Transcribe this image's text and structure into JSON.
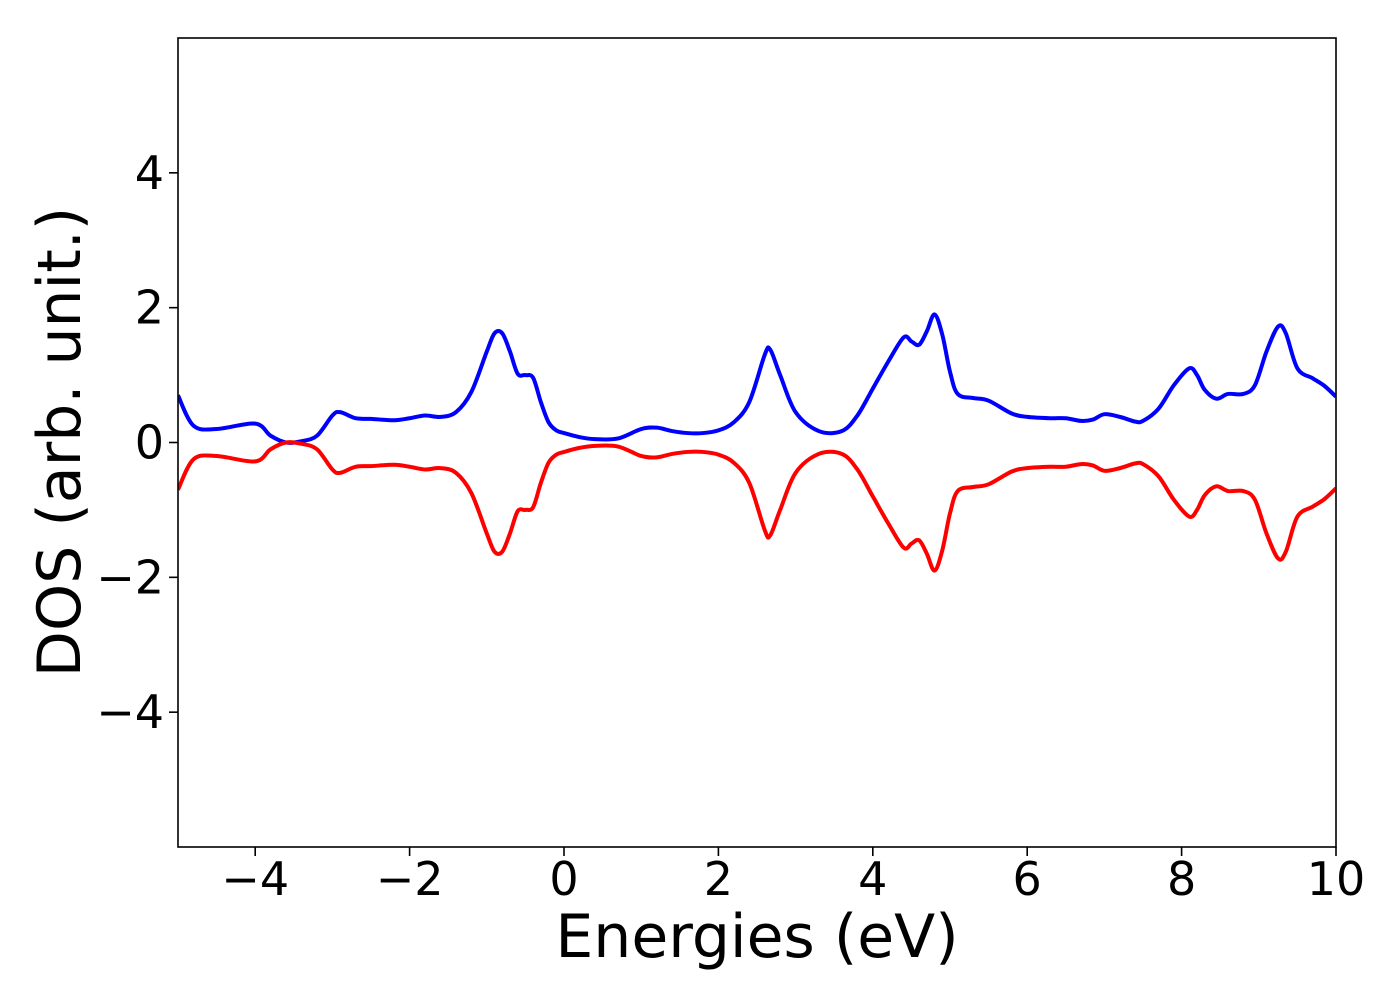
{
  "chart_data": {
    "type": "line",
    "title": "",
    "xlabel": "Energies (eV)",
    "ylabel": "DOS (arb. unit.)",
    "xlim": [
      -5,
      10
    ],
    "ylim": [
      -6,
      6
    ],
    "x_ticks": [
      -4,
      -2,
      0,
      2,
      4,
      6,
      8,
      10
    ],
    "x_tick_labels": [
      "−4",
      "−2",
      "0",
      "2",
      "4",
      "6",
      "8",
      "10"
    ],
    "y_ticks": [
      -4,
      -2,
      0,
      2,
      4
    ],
    "y_tick_labels": [
      "−4",
      "−2",
      "0",
      "2",
      "4"
    ],
    "grid": false,
    "legend": "none",
    "series": [
      {
        "color": "#0000ff",
        "x": [
          -5.0,
          -4.8,
          -4.5,
          -4.0,
          -3.8,
          -3.6,
          -3.4,
          -3.2,
          -3.0,
          -2.9,
          -2.7,
          -2.5,
          -2.2,
          -2.0,
          -1.8,
          -1.6,
          -1.4,
          -1.2,
          -1.0,
          -0.9,
          -0.8,
          -0.7,
          -0.6,
          -0.5,
          -0.4,
          -0.3,
          -0.2,
          -0.1,
          0.0,
          0.2,
          0.4,
          0.7,
          1.0,
          1.2,
          1.4,
          1.6,
          1.8,
          2.0,
          2.2,
          2.4,
          2.6,
          2.67,
          2.8,
          3.0,
          3.3,
          3.6,
          3.8,
          4.0,
          4.2,
          4.4,
          4.5,
          4.6,
          4.7,
          4.8,
          4.9,
          5.0,
          5.1,
          5.3,
          5.5,
          5.8,
          6.0,
          6.3,
          6.5,
          6.7,
          6.85,
          7.0,
          7.2,
          7.4,
          7.5,
          7.7,
          7.9,
          8.1,
          8.2,
          8.3,
          8.45,
          8.6,
          8.8,
          8.95,
          9.1,
          9.25,
          9.35,
          9.5,
          9.7,
          9.85,
          10.0
        ],
        "y": [
          0.7,
          0.25,
          0.2,
          0.28,
          0.1,
          0.0,
          0.02,
          0.1,
          0.4,
          0.45,
          0.36,
          0.35,
          0.33,
          0.36,
          0.4,
          0.38,
          0.45,
          0.75,
          1.35,
          1.62,
          1.62,
          1.35,
          1.02,
          1.0,
          0.96,
          0.6,
          0.3,
          0.18,
          0.14,
          0.08,
          0.05,
          0.06,
          0.2,
          0.22,
          0.17,
          0.14,
          0.14,
          0.18,
          0.3,
          0.6,
          1.3,
          1.38,
          1.0,
          0.45,
          0.17,
          0.17,
          0.4,
          0.8,
          1.2,
          1.56,
          1.5,
          1.45,
          1.65,
          1.9,
          1.6,
          1.05,
          0.72,
          0.66,
          0.62,
          0.43,
          0.38,
          0.36,
          0.36,
          0.32,
          0.34,
          0.42,
          0.38,
          0.31,
          0.32,
          0.5,
          0.85,
          1.1,
          1.0,
          0.78,
          0.65,
          0.72,
          0.72,
          0.85,
          1.35,
          1.72,
          1.62,
          1.1,
          0.95,
          0.84,
          0.68
        ]
      },
      {
        "color": "#ff0000",
        "x": [
          -5.0,
          -4.8,
          -4.5,
          -4.0,
          -3.8,
          -3.6,
          -3.4,
          -3.2,
          -3.0,
          -2.9,
          -2.7,
          -2.5,
          -2.2,
          -2.0,
          -1.8,
          -1.6,
          -1.4,
          -1.2,
          -1.0,
          -0.9,
          -0.8,
          -0.7,
          -0.6,
          -0.5,
          -0.4,
          -0.3,
          -0.2,
          -0.1,
          0.0,
          0.2,
          0.4,
          0.7,
          1.0,
          1.2,
          1.4,
          1.6,
          1.8,
          2.0,
          2.2,
          2.4,
          2.6,
          2.67,
          2.8,
          3.0,
          3.3,
          3.6,
          3.8,
          4.0,
          4.2,
          4.4,
          4.5,
          4.6,
          4.7,
          4.8,
          4.9,
          5.0,
          5.1,
          5.3,
          5.5,
          5.8,
          6.0,
          6.3,
          6.5,
          6.7,
          6.85,
          7.0,
          7.2,
          7.4,
          7.5,
          7.7,
          7.9,
          8.1,
          8.2,
          8.3,
          8.45,
          8.6,
          8.8,
          8.95,
          9.1,
          9.25,
          9.35,
          9.5,
          9.7,
          9.85,
          10.0
        ],
        "y": [
          -0.7,
          -0.25,
          -0.2,
          -0.28,
          -0.1,
          0.0,
          -0.02,
          -0.1,
          -0.4,
          -0.45,
          -0.36,
          -0.35,
          -0.33,
          -0.36,
          -0.4,
          -0.38,
          -0.45,
          -0.75,
          -1.35,
          -1.62,
          -1.62,
          -1.35,
          -1.02,
          -1.0,
          -0.96,
          -0.6,
          -0.3,
          -0.18,
          -0.14,
          -0.08,
          -0.05,
          -0.06,
          -0.2,
          -0.22,
          -0.17,
          -0.14,
          -0.14,
          -0.18,
          -0.3,
          -0.6,
          -1.3,
          -1.38,
          -1.0,
          -0.45,
          -0.17,
          -0.17,
          -0.4,
          -0.8,
          -1.2,
          -1.56,
          -1.5,
          -1.45,
          -1.65,
          -1.9,
          -1.6,
          -1.05,
          -0.72,
          -0.66,
          -0.62,
          -0.43,
          -0.38,
          -0.36,
          -0.36,
          -0.32,
          -0.34,
          -0.42,
          -0.38,
          -0.31,
          -0.32,
          -0.5,
          -0.85,
          -1.1,
          -1.0,
          -0.78,
          -0.65,
          -0.72,
          -0.72,
          -0.85,
          -1.35,
          -1.72,
          -1.62,
          -1.1,
          -0.95,
          -0.84,
          -0.68
        ]
      }
    ]
  }
}
